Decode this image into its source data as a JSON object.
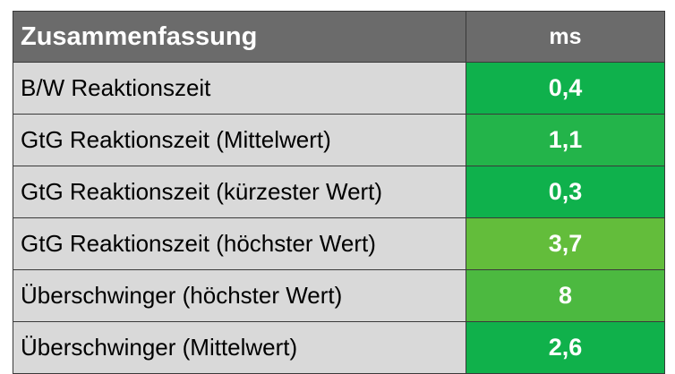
{
  "table": {
    "header": {
      "title": "Zusammenfassung",
      "unit": "ms"
    },
    "header_color": "#6b6b6b",
    "label_bg_color": "#d9d9d9",
    "rows": [
      {
        "label": "B/W Reaktionszeit",
        "value": "0,4",
        "color": "#0fb14c"
      },
      {
        "label": "GtG Reaktionszeit (Mittelwert)",
        "value": "1,1",
        "color": "#23b44a"
      },
      {
        "label": "GtG Reaktionszeit (kürzester Wert)",
        "value": "0,3",
        "color": "#0fb14c"
      },
      {
        "label": "GtG Reaktionszeit (höchster Wert)",
        "value": "3,7",
        "color": "#63bd3b"
      },
      {
        "label": "Überschwinger (höchster Wert)",
        "value": "8",
        "color": "#4cb940"
      },
      {
        "label": "Überschwinger (Mittelwert)",
        "value": "2,6",
        "color": "#10b14b"
      }
    ]
  }
}
